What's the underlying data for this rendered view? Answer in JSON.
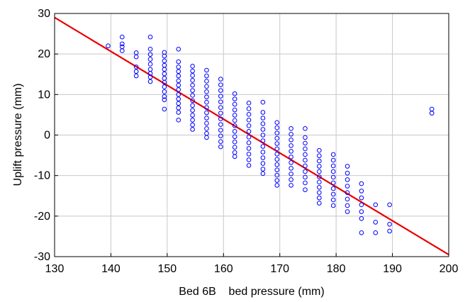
{
  "chart_data": {
    "type": "scatter",
    "title": "",
    "xlabel": "Bed 6B    bed pressure (mm)",
    "ylabel": "Uplift pressure (mm)",
    "xlim": [
      130,
      200
    ],
    "ylim": [
      -30,
      30
    ],
    "x_ticks": [
      130,
      140,
      150,
      160,
      170,
      180,
      190,
      200
    ],
    "y_ticks": [
      30,
      20,
      10,
      0,
      -10,
      -20,
      -30
    ],
    "grid": true,
    "legend": "none",
    "colors": {
      "points": "#0000ff",
      "fit_line": "#ff0000",
      "fit_line_inner": "#7a0000",
      "grid": "#c8c8c8",
      "axes": "#000000"
    },
    "series": [
      {
        "points": [
          [
            139.5,
            22.0
          ],
          [
            142.0,
            24.2
          ],
          [
            142.0,
            22.5
          ],
          [
            142.0,
            21.8
          ],
          [
            142.0,
            20.8
          ],
          [
            144.5,
            20.3
          ],
          [
            144.5,
            19.3
          ],
          [
            144.5,
            16.8
          ],
          [
            144.5,
            15.7
          ],
          [
            144.5,
            14.6
          ],
          [
            147.0,
            24.2
          ],
          [
            147.0,
            21.2
          ],
          [
            147.0,
            19.9
          ],
          [
            147.0,
            18.7
          ],
          [
            147.0,
            17.5
          ],
          [
            147.0,
            16.2
          ],
          [
            147.0,
            15.2
          ],
          [
            147.0,
            14.3
          ],
          [
            147.0,
            13.2
          ],
          [
            149.5,
            20.4
          ],
          [
            149.5,
            19.5
          ],
          [
            149.5,
            18.3
          ],
          [
            149.5,
            17.2
          ],
          [
            149.5,
            16.2
          ],
          [
            149.5,
            15.1
          ],
          [
            149.5,
            14.0
          ],
          [
            149.5,
            13.0
          ],
          [
            149.5,
            11.9
          ],
          [
            149.5,
            10.7
          ],
          [
            149.5,
            9.5
          ],
          [
            149.5,
            8.7
          ],
          [
            149.5,
            6.4
          ],
          [
            152.0,
            21.2
          ],
          [
            152.0,
            18.1
          ],
          [
            152.0,
            16.8
          ],
          [
            152.0,
            15.7
          ],
          [
            152.0,
            14.6
          ],
          [
            152.0,
            13.4
          ],
          [
            152.0,
            12.3
          ],
          [
            152.0,
            11.2
          ],
          [
            152.0,
            10.0
          ],
          [
            152.0,
            8.9
          ],
          [
            152.0,
            7.8
          ],
          [
            152.0,
            6.7
          ],
          [
            152.0,
            5.6
          ],
          [
            152.0,
            3.7
          ],
          [
            154.5,
            17.0
          ],
          [
            154.5,
            15.8
          ],
          [
            154.5,
            14.7
          ],
          [
            154.5,
            13.5
          ],
          [
            154.5,
            12.3
          ],
          [
            154.5,
            11.0
          ],
          [
            154.5,
            9.8
          ],
          [
            154.5,
            8.5
          ],
          [
            154.5,
            7.3
          ],
          [
            154.5,
            6.1
          ],
          [
            154.5,
            4.9
          ],
          [
            154.5,
            3.7
          ],
          [
            154.5,
            2.5
          ],
          [
            154.5,
            1.4
          ],
          [
            157.0,
            16.0
          ],
          [
            157.0,
            14.6
          ],
          [
            157.0,
            13.3
          ],
          [
            157.0,
            12.0
          ],
          [
            157.0,
            10.7
          ],
          [
            157.0,
            9.4
          ],
          [
            157.0,
            8.1
          ],
          [
            157.0,
            6.8
          ],
          [
            157.0,
            5.5
          ],
          [
            157.0,
            4.2
          ],
          [
            157.0,
            2.9
          ],
          [
            157.0,
            1.6
          ],
          [
            157.0,
            0.4
          ],
          [
            157.0,
            -0.6
          ],
          [
            159.5,
            13.8
          ],
          [
            159.5,
            12.4
          ],
          [
            159.5,
            11.0
          ],
          [
            159.5,
            9.6
          ],
          [
            159.5,
            8.2
          ],
          [
            159.5,
            6.8
          ],
          [
            159.5,
            5.4
          ],
          [
            159.5,
            4.0
          ],
          [
            159.5,
            2.6
          ],
          [
            159.5,
            1.2
          ],
          [
            159.5,
            -0.2
          ],
          [
            159.5,
            -1.6
          ],
          [
            159.5,
            -2.9
          ],
          [
            162.0,
            10.2
          ],
          [
            162.0,
            8.9
          ],
          [
            162.0,
            7.6
          ],
          [
            162.0,
            6.2
          ],
          [
            162.0,
            4.9
          ],
          [
            162.0,
            3.6
          ],
          [
            162.0,
            2.3
          ],
          [
            162.0,
            0.9
          ],
          [
            162.0,
            -0.4
          ],
          [
            162.0,
            -1.7
          ],
          [
            162.0,
            -3.0
          ],
          [
            162.0,
            -4.3
          ],
          [
            162.0,
            -5.3
          ],
          [
            164.5,
            7.9
          ],
          [
            164.5,
            6.5
          ],
          [
            164.5,
            5.1
          ],
          [
            164.5,
            3.7
          ],
          [
            164.5,
            2.3
          ],
          [
            164.5,
            0.9
          ],
          [
            164.5,
            -0.5
          ],
          [
            164.5,
            -1.9
          ],
          [
            164.5,
            -3.3
          ],
          [
            164.5,
            -4.7
          ],
          [
            164.5,
            -6.1
          ],
          [
            164.5,
            -7.5
          ],
          [
            167.0,
            8.1
          ],
          [
            167.0,
            5.6
          ],
          [
            167.0,
            4.2
          ],
          [
            167.0,
            2.8
          ],
          [
            167.0,
            1.4
          ],
          [
            167.0,
            0.0
          ],
          [
            167.0,
            -1.4
          ],
          [
            167.0,
            -2.8
          ],
          [
            167.0,
            -4.2
          ],
          [
            167.0,
            -5.6
          ],
          [
            167.0,
            -7.0
          ],
          [
            167.0,
            -8.4
          ],
          [
            167.0,
            -9.5
          ],
          [
            169.5,
            3.1
          ],
          [
            169.5,
            1.8
          ],
          [
            169.5,
            0.5
          ],
          [
            169.5,
            -0.8
          ],
          [
            169.5,
            -2.1
          ],
          [
            169.5,
            -3.4
          ],
          [
            169.5,
            -4.7
          ],
          [
            169.5,
            -6.0
          ],
          [
            169.5,
            -7.3
          ],
          [
            169.5,
            -8.6
          ],
          [
            169.5,
            -9.9
          ],
          [
            169.5,
            -11.2
          ],
          [
            169.5,
            -12.4
          ],
          [
            172.0,
            1.6
          ],
          [
            172.0,
            0.2
          ],
          [
            172.0,
            -1.2
          ],
          [
            172.0,
            -2.6
          ],
          [
            172.0,
            -4.0
          ],
          [
            172.0,
            -5.4
          ],
          [
            172.0,
            -6.8
          ],
          [
            172.0,
            -8.2
          ],
          [
            172.0,
            -9.6
          ],
          [
            172.0,
            -11.0
          ],
          [
            172.0,
            -12.4
          ],
          [
            174.5,
            1.6
          ],
          [
            174.5,
            -0.6
          ],
          [
            174.5,
            -2.0
          ],
          [
            174.5,
            -3.4
          ],
          [
            174.5,
            -4.8
          ],
          [
            174.5,
            -6.2
          ],
          [
            174.5,
            -7.6
          ],
          [
            174.5,
            -9.0
          ],
          [
            174.5,
            -10.4
          ],
          [
            174.5,
            -11.8
          ],
          [
            174.5,
            -13.5
          ],
          [
            177.0,
            -3.8
          ],
          [
            177.0,
            -5.1
          ],
          [
            177.0,
            -6.4
          ],
          [
            177.0,
            -7.7
          ],
          [
            177.0,
            -9.0
          ],
          [
            177.0,
            -10.3
          ],
          [
            177.0,
            -11.6
          ],
          [
            177.0,
            -12.9
          ],
          [
            177.0,
            -14.2
          ],
          [
            177.0,
            -15.5
          ],
          [
            177.0,
            -16.8
          ],
          [
            179.5,
            -4.8
          ],
          [
            179.5,
            -6.2
          ],
          [
            179.5,
            -7.6
          ],
          [
            179.5,
            -9.0
          ],
          [
            179.5,
            -10.4
          ],
          [
            179.5,
            -11.8
          ],
          [
            179.5,
            -13.2
          ],
          [
            179.5,
            -14.6
          ],
          [
            179.5,
            -16.0
          ],
          [
            179.5,
            -17.4
          ],
          [
            182.0,
            -7.7
          ],
          [
            182.0,
            -9.4
          ],
          [
            182.0,
            -11.0
          ],
          [
            182.0,
            -12.6
          ],
          [
            182.0,
            -14.2
          ],
          [
            182.0,
            -15.8
          ],
          [
            182.0,
            -17.4
          ],
          [
            182.0,
            -18.9
          ],
          [
            184.5,
            -12.0
          ],
          [
            184.5,
            -13.8
          ],
          [
            184.5,
            -15.5
          ],
          [
            184.5,
            -17.2
          ],
          [
            184.5,
            -18.9
          ],
          [
            184.5,
            -20.6
          ],
          [
            184.5,
            -24.1
          ],
          [
            187.0,
            -17.2
          ],
          [
            187.0,
            -21.5
          ],
          [
            187.0,
            -24.1
          ],
          [
            189.5,
            -17.2
          ],
          [
            189.5,
            -22.0
          ],
          [
            189.5,
            -23.7
          ],
          [
            197.0,
            6.4
          ],
          [
            197.0,
            5.4
          ]
        ]
      }
    ],
    "fit_line": {
      "x": [
        130,
        200
      ],
      "y": [
        29.0,
        -29.5
      ]
    }
  }
}
